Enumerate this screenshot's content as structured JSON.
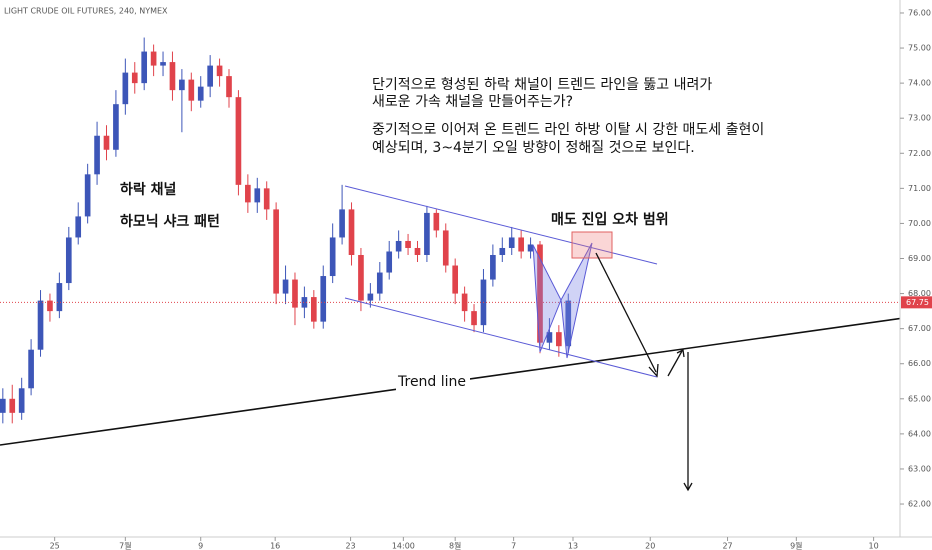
{
  "chart_data": {
    "type": "candlestick",
    "title": "LIGHT CRUDE OIL FUTURES, 240, NYMEX",
    "annotations": [
      "단기적으로 형성된 하락 채널이 트렌드 라인을 뚫고 내려가",
      "새로운 가속 채널을 만들어주는가?",
      "중기적으로 이어져 온 트렌드 라인 하방 이탈 시 강한 매도세 출현이",
      "예상되며, 3~4분기 오일 방향이 정해질 것으로 보인다.",
      "하락 채널",
      "하모닉 샤크 패턴",
      "매도 진입 오차 범위",
      "Trend line"
    ],
    "up_color": "#3d56b8",
    "down_color": "#e0434b",
    "x": [
      0,
      1,
      2,
      3,
      4,
      5,
      6,
      7,
      8,
      9,
      10,
      11,
      12,
      13,
      14,
      15,
      16,
      17,
      18,
      19,
      20,
      21,
      22,
      23,
      24,
      25,
      26,
      27,
      28,
      29,
      30,
      31,
      32,
      33,
      34,
      35,
      36,
      37,
      38,
      39,
      40,
      41,
      42,
      43,
      44,
      45,
      46,
      47,
      48,
      49,
      50,
      51,
      52,
      53,
      54,
      55,
      56,
      57,
      58,
      59,
      60
    ],
    "open": [
      64.6,
      65.0,
      64.6,
      65.3,
      66.4,
      67.8,
      67.5,
      68.3,
      69.6,
      70.2,
      71.4,
      72.5,
      72.1,
      73.4,
      74.3,
      74.0,
      74.9,
      74.5,
      74.6,
      73.8,
      74.1,
      73.5,
      73.9,
      74.5,
      74.2,
      73.6,
      71.1,
      70.6,
      71.0,
      70.4,
      68.0,
      68.4,
      67.6,
      67.9,
      67.2,
      68.5,
      69.6,
      70.4,
      69.1,
      67.8,
      68.0,
      68.6,
      69.2,
      69.5,
      69.3,
      69.1,
      70.3,
      69.8,
      68.8,
      68.0,
      67.5,
      67.1,
      68.4,
      69.1,
      69.3,
      69.6,
      69.2,
      69.4,
      66.6,
      66.9,
      66.5
    ],
    "high": [
      65.3,
      65.4,
      65.6,
      66.7,
      68.1,
      68.0,
      68.6,
      69.9,
      70.6,
      71.7,
      72.9,
      72.8,
      73.8,
      74.7,
      74.6,
      75.3,
      75.1,
      74.9,
      74.9,
      74.4,
      74.3,
      74.2,
      74.8,
      74.7,
      74.4,
      73.8,
      71.4,
      71.3,
      71.2,
      70.6,
      68.8,
      68.6,
      68.2,
      68.1,
      68.8,
      70.0,
      71.1,
      70.6,
      69.3,
      68.3,
      68.9,
      69.5,
      69.8,
      69.7,
      69.5,
      70.5,
      70.4,
      70.0,
      69.0,
      68.2,
      67.7,
      68.7,
      69.4,
      69.6,
      69.9,
      69.8,
      69.6,
      69.5,
      67.3,
      67.1,
      68.0
    ],
    "low": [
      64.3,
      64.3,
      64.4,
      65.1,
      66.2,
      67.2,
      67.3,
      68.1,
      69.4,
      70.0,
      71.1,
      71.8,
      71.9,
      73.1,
      73.7,
      73.8,
      74.2,
      74.2,
      73.5,
      72.6,
      73.2,
      73.3,
      73.6,
      73.9,
      73.3,
      70.8,
      70.3,
      70.3,
      70.1,
      67.7,
      67.7,
      67.1,
      67.3,
      67.0,
      67.0,
      68.3,
      69.4,
      68.8,
      67.5,
      67.6,
      67.8,
      68.4,
      69.0,
      69.1,
      68.9,
      68.9,
      69.6,
      68.6,
      67.7,
      67.2,
      66.9,
      66.9,
      68.2,
      68.9,
      69.1,
      69.0,
      69.0,
      66.3,
      66.4,
      66.2,
      66.3
    ],
    "close": [
      65.0,
      64.6,
      65.3,
      66.4,
      67.8,
      67.5,
      68.3,
      69.6,
      70.2,
      71.4,
      72.5,
      72.1,
      73.4,
      74.3,
      74.0,
      74.9,
      74.5,
      74.6,
      73.8,
      74.1,
      73.5,
      73.9,
      74.5,
      74.2,
      73.6,
      71.1,
      70.6,
      71.0,
      70.4,
      68.0,
      68.4,
      67.6,
      67.9,
      67.2,
      68.5,
      69.6,
      70.4,
      69.1,
      67.8,
      68.0,
      68.6,
      69.2,
      69.5,
      69.3,
      69.1,
      70.3,
      69.8,
      68.8,
      68.0,
      67.5,
      67.1,
      68.4,
      69.1,
      69.3,
      69.6,
      69.2,
      69.4,
      66.6,
      66.9,
      66.5,
      67.8
    ],
    "last_price": 67.75,
    "last_price_color": "#e0434b",
    "xlim": [
      -0.3,
      95.2
    ],
    "xticks": [
      {
        "value": 5.5,
        "label": "25"
      },
      {
        "value": 13,
        "label": "7월"
      },
      {
        "value": 21,
        "label": "9"
      },
      {
        "value": 28.9,
        "label": "16"
      },
      {
        "value": 36.9,
        "label": "23"
      },
      {
        "value": 42.5,
        "label": "14:00"
      },
      {
        "value": 48,
        "label": "8월"
      },
      {
        "value": 54.2,
        "label": "7"
      },
      {
        "value": 60.5,
        "label": "13"
      },
      {
        "value": 68.7,
        "label": "20"
      },
      {
        "value": 76.9,
        "label": "27"
      },
      {
        "value": 84.2,
        "label": "9월"
      },
      {
        "value": 92.4,
        "label": "10"
      }
    ],
    "ylim": [
      61.06,
      76.37
    ],
    "yticks": [
      {
        "value": 62,
        "label": "62.00"
      },
      {
        "value": 63,
        "label": "63.00"
      },
      {
        "value": 64,
        "label": "64.00"
      },
      {
        "value": 65,
        "label": "65.00"
      },
      {
        "value": 66,
        "label": "66.00"
      },
      {
        "value": 67,
        "label": "67.00"
      },
      {
        "value": 68,
        "label": "68.00"
      },
      {
        "value": 69,
        "label": "69.00"
      },
      {
        "value": 70,
        "label": "70.00"
      },
      {
        "value": 71,
        "label": "71.00"
      },
      {
        "value": 72,
        "label": "72.00"
      },
      {
        "value": 73,
        "label": "73.00"
      },
      {
        "value": 74,
        "label": "74.00"
      },
      {
        "value": 75,
        "label": "75.00"
      },
      {
        "value": 76,
        "label": "76.00"
      }
    ]
  }
}
